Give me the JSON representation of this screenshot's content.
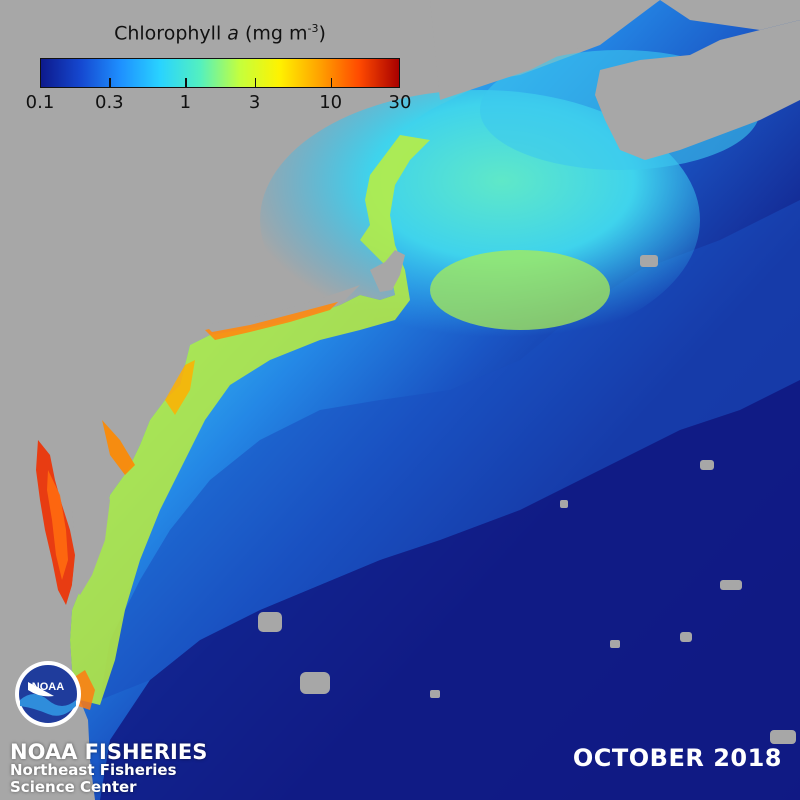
{
  "colorbar": {
    "title_main": "Chlorophyll ",
    "title_variable": "a",
    "title_units": " (mg m",
    "title_exponent": "-3",
    "title_close": ")",
    "ticks": [
      "0.1",
      "0.3",
      "1",
      "3",
      "10",
      "30"
    ],
    "tick_values": [
      0.1,
      0.3,
      1,
      3,
      10,
      30
    ],
    "scale": "log",
    "range": [
      0.1,
      30
    ],
    "colormap": [
      "#0d1a8c",
      "#1548d0",
      "#1e90ff",
      "#29d3ff",
      "#53f0c0",
      "#c5ff3c",
      "#fff200",
      "#ffa200",
      "#ff4a00",
      "#a80000"
    ]
  },
  "credit": {
    "organization": "NOAA FISHERIES",
    "center_line1": "Northeast Fisheries",
    "center_line2": "Science Center",
    "logo_text": "NOAA"
  },
  "date_label": "OCTOBER 2018",
  "colors": {
    "land": "#a7a7a7",
    "deep_ocean": "#121e8a",
    "shelf_ocean": "#1e74d8",
    "coastal": "#55e6e0",
    "nearshore": "#c9f03a",
    "bay": "#e83c12"
  },
  "icons": [
    "noaa-logo-icon"
  ]
}
